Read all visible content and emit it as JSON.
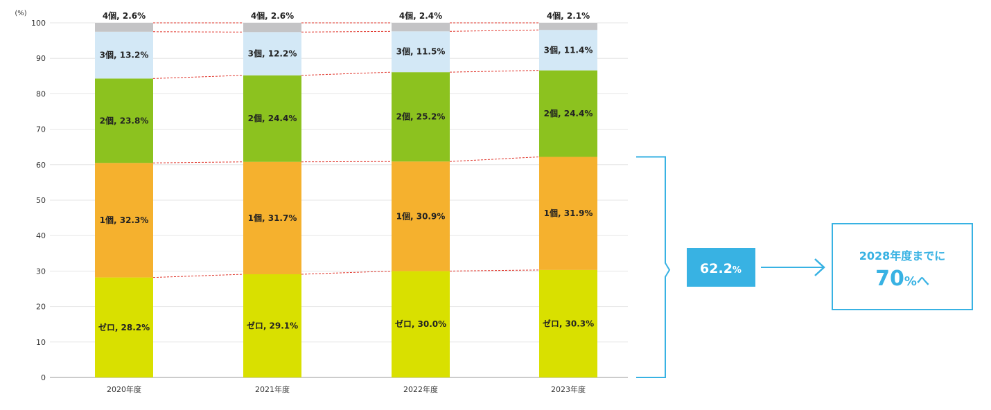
{
  "chart_data": {
    "type": "bar",
    "stacked": true,
    "y_unit_label": "(%)",
    "ylim": [
      0,
      100
    ],
    "y_ticks": [
      0,
      10,
      20,
      30,
      40,
      50,
      60,
      70,
      80,
      90,
      100
    ],
    "grid": true,
    "categories": [
      "2020年度",
      "2021年度",
      "2022年度",
      "2023年度"
    ],
    "series": [
      {
        "name": "ゼロ",
        "color": "#d9e000",
        "values": [
          28.2,
          29.1,
          30.0,
          30.3
        ],
        "labels": [
          "ゼロ, 28.2%",
          "ゼロ, 29.1%",
          "ゼロ, 30.0%",
          "ゼロ, 30.3%"
        ]
      },
      {
        "name": "1個",
        "color": "#f5b12e",
        "values": [
          32.3,
          31.7,
          30.9,
          31.9
        ],
        "labels": [
          "1個, 32.3%",
          "1個, 31.7%",
          "1個, 30.9%",
          "1個, 31.9%"
        ]
      },
      {
        "name": "2個",
        "color": "#8cc21f",
        "values": [
          23.8,
          24.4,
          25.2,
          24.4
        ],
        "labels": [
          "2個, 23.8%",
          "2個, 24.4%",
          "2個, 25.2%",
          "2個, 24.4%"
        ]
      },
      {
        "name": "3個",
        "color": "#d3e8f6",
        "values": [
          13.2,
          12.2,
          11.5,
          11.4
        ],
        "labels": [
          "3個, 13.2%",
          "3個, 12.2%",
          "3個, 11.5%",
          "3個, 11.4%"
        ]
      },
      {
        "name": "4個",
        "color": "#c4c4c6",
        "values": [
          2.6,
          2.6,
          2.4,
          2.1
        ],
        "labels": [
          "4個, 2.6%",
          "4個, 2.6%",
          "4個, 2.4%",
          "4個, 2.1%"
        ]
      }
    ],
    "connector_color": "#e0352b",
    "annotation": {
      "value": "62.2",
      "unit": "%",
      "box_color": "#38b2e3",
      "target_line1": "2028年度までに",
      "target_value": "70",
      "target_suffix": "%へ"
    }
  }
}
